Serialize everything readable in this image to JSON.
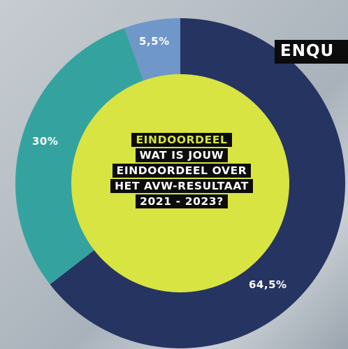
{
  "banner": {
    "text": "ENQU"
  },
  "center_text": {
    "kicker": "EINDOORDEEL",
    "lines": [
      "WAT IS JOUW",
      "EINDOORDEEL OVER",
      "HET AVW-RESULTAAT",
      "2021 - 2023?"
    ]
  },
  "chart_data": {
    "type": "pie",
    "title": "",
    "categories": [
      "",
      "",
      ""
    ],
    "values": [
      64.5,
      30,
      5.5
    ],
    "labels": [
      "64,5%",
      "30%",
      "5,5%"
    ],
    "colors": [
      "#263461",
      "#34a39f",
      "#6f97c9"
    ],
    "hole_color": "#d8e442",
    "start": "12 o'clock",
    "direction": "clockwise"
  }
}
